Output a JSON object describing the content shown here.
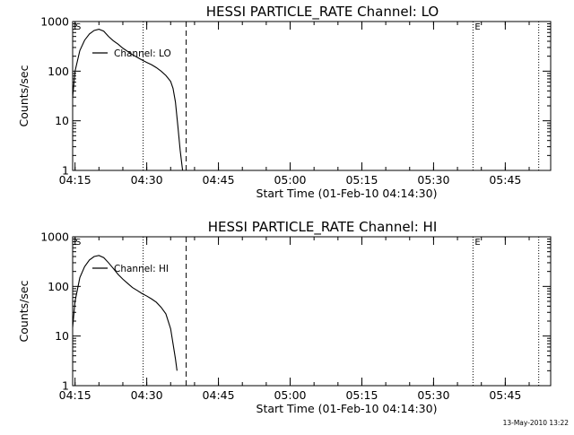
{
  "footer": {
    "timestamp": "13-May-2010 13:22"
  },
  "chart_data": [
    {
      "type": "line",
      "title": "HESSI PARTICLE_RATE Channel: LO",
      "xlabel": "Start Time (01-Feb-10 04:14:30)",
      "ylabel": "Counts/sec",
      "y_scale": "log",
      "ylim": [
        1,
        1000
      ],
      "xlim": [
        "04:14:30",
        "05:54:30"
      ],
      "xticks": [
        "04:15",
        "04:30",
        "04:45",
        "05:00",
        "05:15",
        "05:30",
        "05:45"
      ],
      "yticks": [
        "1",
        "10",
        "100",
        "1000"
      ],
      "legend": {
        "position": "top-left",
        "entries": [
          "Channel: LO"
        ]
      },
      "markers": [
        {
          "label": "S",
          "time": "04:14:30",
          "style": "none"
        },
        {
          "label": "",
          "time": "04:29:15",
          "style": "dotted"
        },
        {
          "label": "",
          "time": "04:38:15",
          "style": "dashed"
        },
        {
          "label": "E",
          "time": "05:38:15",
          "style": "dotted"
        },
        {
          "label": "",
          "time": "05:52:00",
          "style": "dotted"
        }
      ],
      "series": [
        {
          "name": "Channel: LO",
          "x": [
            "04:14:30",
            "04:15:00",
            "04:16:00",
            "04:17:00",
            "04:18:00",
            "04:19:00",
            "04:20:00",
            "04:21:00",
            "04:22:00",
            "04:23:00",
            "04:24:00",
            "04:25:00",
            "04:26:00",
            "04:27:00",
            "04:28:00",
            "04:29:00",
            "04:30:00",
            "04:31:00",
            "04:32:00",
            "04:33:00",
            "04:34:00",
            "04:35:00",
            "04:35:30",
            "04:36:00",
            "04:36:30",
            "04:37:00",
            "04:37:30"
          ],
          "values": [
            30,
            100,
            260,
            420,
            560,
            660,
            700,
            640,
            500,
            410,
            350,
            290,
            250,
            215,
            190,
            168,
            150,
            135,
            118,
            100,
            82,
            62,
            45,
            24,
            8,
            2.5,
            1
          ]
        }
      ]
    },
    {
      "type": "line",
      "title": "HESSI PARTICLE_RATE Channel: HI",
      "xlabel": "Start Time (01-Feb-10 04:14:30)",
      "ylabel": "Counts/sec",
      "y_scale": "log",
      "ylim": [
        1,
        1000
      ],
      "xlim": [
        "04:14:30",
        "05:54:30"
      ],
      "xticks": [
        "04:15",
        "04:30",
        "04:45",
        "05:00",
        "05:15",
        "05:30",
        "05:45"
      ],
      "yticks": [
        "1",
        "10",
        "100",
        "1000"
      ],
      "legend": {
        "position": "top-left",
        "entries": [
          "Channel: HI"
        ]
      },
      "markers": [
        {
          "label": "S",
          "time": "04:14:30",
          "style": "none"
        },
        {
          "label": "",
          "time": "04:29:15",
          "style": "dotted"
        },
        {
          "label": "",
          "time": "04:38:15",
          "style": "dashed"
        },
        {
          "label": "E",
          "time": "05:38:15",
          "style": "dotted"
        },
        {
          "label": "",
          "time": "05:52:00",
          "style": "dotted"
        }
      ],
      "series": [
        {
          "name": "Channel: HI",
          "x": [
            "04:14:30",
            "04:15:00",
            "04:16:00",
            "04:17:00",
            "04:18:00",
            "04:19:00",
            "04:20:00",
            "04:21:00",
            "04:22:00",
            "04:23:00",
            "04:24:00",
            "04:25:00",
            "04:26:00",
            "04:27:00",
            "04:28:00",
            "04:29:00",
            "04:30:00",
            "04:31:00",
            "04:32:00",
            "04:33:00",
            "04:34:00",
            "04:35:00",
            "04:35:30",
            "04:36:00",
            "04:36:20"
          ],
          "values": [
            15,
            50,
            150,
            250,
            340,
            400,
            420,
            380,
            300,
            230,
            175,
            140,
            115,
            95,
            83,
            72,
            64,
            56,
            48,
            38,
            28,
            14,
            7,
            3.5,
            2
          ]
        }
      ]
    }
  ]
}
